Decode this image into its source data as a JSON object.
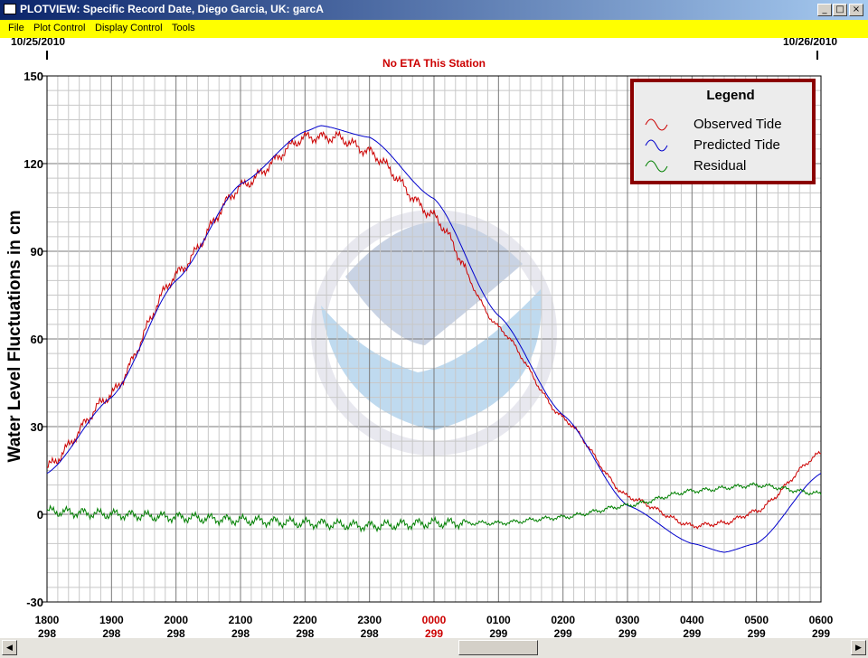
{
  "window": {
    "title": "PLOTVIEW: Specific Record Date, Diego Garcia, UK: garcA"
  },
  "menu": [
    "File",
    "Plot Control",
    "Display Control",
    "Tools"
  ],
  "colors": {
    "observed": "#cc0000",
    "predicted": "#0000cc",
    "residual": "#008000",
    "legend_border": "#8b0000",
    "notice": "#cc0000",
    "menubar": "#ffff00"
  },
  "icons": {
    "minimize": "minimize-icon",
    "maximize": "maximize-icon",
    "close": "close-icon",
    "scroll_left": "arrow-left-icon",
    "scroll_right": "arrow-right-icon"
  },
  "chart_data": {
    "type": "line",
    "date_start": "10/25/2010",
    "date_end": "10/26/2010",
    "notice": "No ETA This Station",
    "ylabel": "Water Level Fluctuations in cm",
    "ylim": [
      -30,
      150
    ],
    "yticks": [
      -30,
      0,
      30,
      60,
      90,
      120,
      150
    ],
    "xticks": [
      {
        "time": "1800",
        "day": "298"
      },
      {
        "time": "1900",
        "day": "298"
      },
      {
        "time": "2000",
        "day": "298"
      },
      {
        "time": "2100",
        "day": "298"
      },
      {
        "time": "2200",
        "day": "298"
      },
      {
        "time": "2300",
        "day": "298"
      },
      {
        "time": "0000",
        "day": "299",
        "highlight": true
      },
      {
        "time": "0100",
        "day": "299"
      },
      {
        "time": "0200",
        "day": "299"
      },
      {
        "time": "0300",
        "day": "299"
      },
      {
        "time": "0400",
        "day": "299"
      },
      {
        "time": "0500",
        "day": "299"
      },
      {
        "time": "0600",
        "day": "299"
      }
    ],
    "xlim_hours": [
      0,
      12
    ],
    "grid": true,
    "legend": {
      "title": "Legend",
      "position": "top-right"
    },
    "series": [
      {
        "name": "Observed Tide",
        "x_hours": [
          0,
          1,
          2,
          3,
          4,
          4.5,
          5,
          6,
          7,
          8,
          9,
          10,
          10.5,
          11,
          12
        ],
        "values": [
          16,
          41,
          82,
          112,
          129,
          129,
          124,
          102,
          64,
          33,
          6,
          -4,
          -3,
          1,
          21
        ]
      },
      {
        "name": "Predicted Tide",
        "x_hours": [
          0,
          1,
          2,
          3,
          4,
          4.25,
          5,
          6,
          7,
          8,
          9,
          10,
          10.5,
          11,
          12
        ],
        "values": [
          14,
          40,
          80,
          113,
          131,
          133,
          129,
          108,
          68,
          34,
          3,
          -10,
          -13,
          -10,
          14
        ]
      },
      {
        "name": "Residual",
        "x_hours": [
          0,
          1,
          2,
          3,
          4,
          5,
          6,
          7,
          8,
          9,
          10,
          11,
          12
        ],
        "values": [
          1,
          0,
          -1,
          -2,
          -3,
          -4,
          -3,
          -3,
          -1,
          3,
          8,
          10,
          7
        ]
      }
    ]
  }
}
